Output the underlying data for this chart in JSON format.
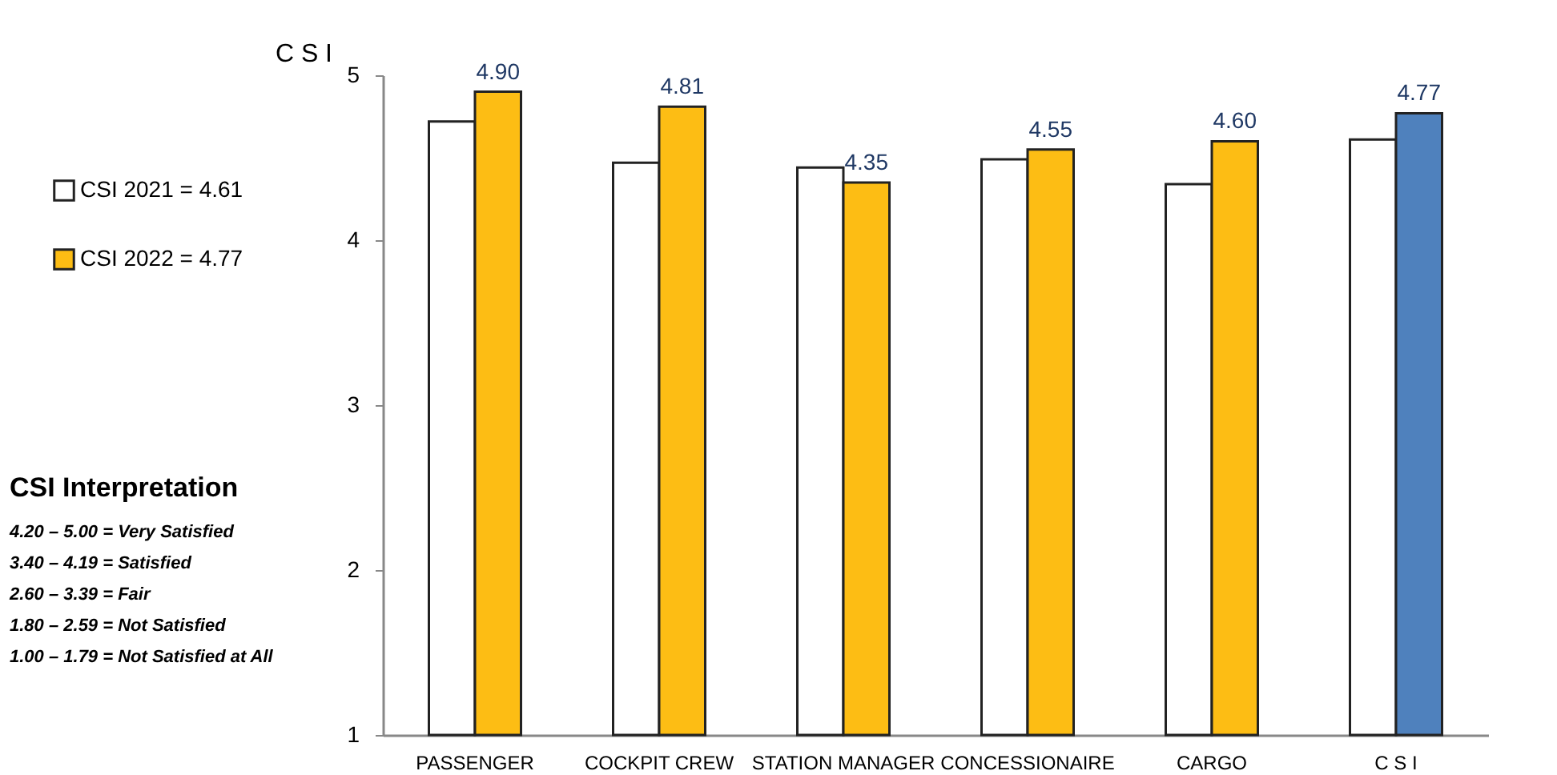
{
  "chart_data": {
    "type": "bar",
    "ylabel": "C S I",
    "categories": [
      "PASSENGER",
      "COCKPIT CREW",
      "STATION MANAGER",
      "CONCESSIONAIRE",
      "CARGO",
      "C S I"
    ],
    "series": [
      {
        "name": "CSI 2021 = 4.61",
        "color": "#ffffff",
        "values": [
          4.72,
          4.47,
          4.44,
          4.49,
          4.34,
          4.61
        ]
      },
      {
        "name": "CSI 2022 = 4.77",
        "color": "#fdbd14",
        "colors": [
          "#fdbd14",
          "#fdbd14",
          "#fdbd14",
          "#fdbd14",
          "#fdbd14",
          "#4f81bd"
        ],
        "values": [
          4.9,
          4.81,
          4.35,
          4.55,
          4.6,
          4.77
        ],
        "value_labels": [
          "4.90",
          "4.81",
          "4.35",
          "4.55",
          "4.60",
          "4.77"
        ]
      }
    ],
    "ylim": [
      1,
      5
    ],
    "yticks": [
      1,
      2,
      3,
      4,
      5
    ],
    "grid": false,
    "legend": "left",
    "annotations": [
      "CSI Interpretation",
      "4.20 – 5.00 = Very Satisfied",
      "3.40 – 4.19 = Satisfied",
      "2.60 – 3.39 = Fair",
      "1.80 – 2.59 = Not Satisfied",
      "1.00 – 1.79 = Not Satisfied at All"
    ]
  }
}
